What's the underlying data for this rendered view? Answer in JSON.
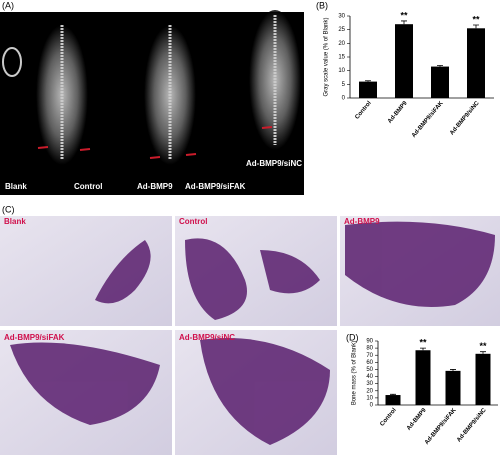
{
  "panel_labels": [
    "(A)",
    "(B)",
    "(C)",
    "(D)"
  ],
  "xray_labels": [
    "Blank",
    "Control",
    "Ad-BMP9",
    "Ad-BMP9/siFAK",
    "Ad-BMP9/siNC"
  ],
  "histology_labels": [
    "Blank",
    "Control",
    "Ad-BMP9",
    "Ad-BMP9/siFAK",
    "Ad-BMP9/siNC"
  ],
  "chart_data": [
    {
      "type": "bar",
      "ylabel": "Gray scale value (% of Blank)",
      "categories": [
        "Control",
        "Ad-BMP9",
        "Ad-BMP9/siFAK",
        "Ad-BMP9/siNC"
      ],
      "values": [
        6,
        27,
        11.5,
        25.5
      ],
      "errors": [
        0.3,
        1.2,
        0.4,
        1.2
      ],
      "significance": [
        null,
        "**",
        null,
        "**"
      ],
      "color": "#000000",
      "ylim": [
        0,
        30
      ],
      "yticks": [
        0,
        5,
        10,
        15,
        20,
        25,
        30
      ]
    },
    {
      "type": "bar",
      "ylabel": "Bone mass (% of Blank)",
      "categories": [
        "Control",
        "Ad-BMP9",
        "Ad-BMP9/siFAK",
        "Ad-BMP9/siNC"
      ],
      "values": [
        14,
        77,
        48,
        72
      ],
      "errors": [
        1,
        3,
        2,
        3
      ],
      "significance": [
        null,
        "**",
        null,
        "**"
      ],
      "color": "#000000",
      "ylim": [
        0,
        90
      ],
      "yticks": [
        0,
        10,
        20,
        30,
        40,
        50,
        60,
        70,
        80,
        90
      ]
    }
  ]
}
